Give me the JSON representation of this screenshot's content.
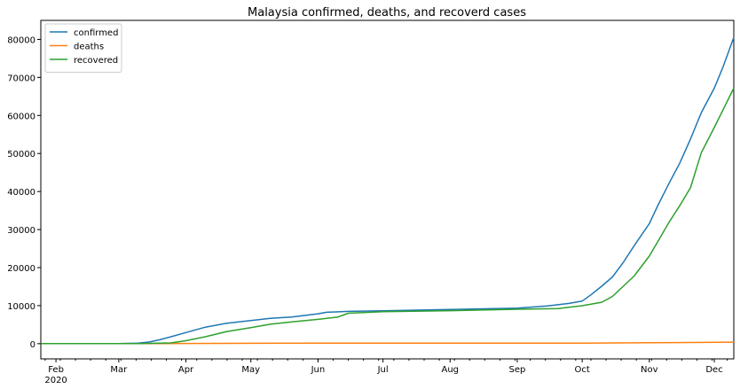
{
  "chart_data": {
    "type": "line",
    "title": "Malaysia confirmed, deaths, and recoverd cases",
    "xlabel": "",
    "ylabel": "",
    "x_start": "2020-01-25",
    "x_end": "2020-12-10",
    "ylim": [
      -4000,
      85000
    ],
    "yticks": [
      0,
      10000,
      20000,
      30000,
      40000,
      50000,
      60000,
      70000,
      80000
    ],
    "xticks": [
      {
        "date": "2020-02-01",
        "label": "Feb",
        "sublabel": "2020"
      },
      {
        "date": "2020-03-01",
        "label": "Mar",
        "sublabel": ""
      },
      {
        "date": "2020-04-01",
        "label": "Apr",
        "sublabel": ""
      },
      {
        "date": "2020-05-01",
        "label": "May",
        "sublabel": ""
      },
      {
        "date": "2020-06-01",
        "label": "Jun",
        "sublabel": ""
      },
      {
        "date": "2020-07-01",
        "label": "Jul",
        "sublabel": ""
      },
      {
        "date": "2020-08-01",
        "label": "Aug",
        "sublabel": ""
      },
      {
        "date": "2020-09-01",
        "label": "Sep",
        "sublabel": ""
      },
      {
        "date": "2020-10-01",
        "label": "Oct",
        "sublabel": ""
      },
      {
        "date": "2020-11-01",
        "label": "Nov",
        "sublabel": ""
      },
      {
        "date": "2020-12-01",
        "label": "Dec",
        "sublabel": ""
      }
    ],
    "grid": false,
    "legend": "top-left",
    "series": [
      {
        "name": "confirmed",
        "color": "#1f77b4",
        "points": [
          [
            "2020-01-25",
            3
          ],
          [
            "2020-02-15",
            22
          ],
          [
            "2020-03-01",
            29
          ],
          [
            "2020-03-10",
            129
          ],
          [
            "2020-03-15",
            428
          ],
          [
            "2020-03-20",
            1030
          ],
          [
            "2020-03-25",
            1796
          ],
          [
            "2020-04-01",
            2908
          ],
          [
            "2020-04-10",
            4346
          ],
          [
            "2020-04-20",
            5389
          ],
          [
            "2020-05-01",
            6071
          ],
          [
            "2020-05-10",
            6656
          ],
          [
            "2020-05-20",
            7009
          ],
          [
            "2020-06-01",
            7857
          ],
          [
            "2020-06-05",
            8247
          ],
          [
            "2020-06-15",
            8494
          ],
          [
            "2020-07-01",
            8640
          ],
          [
            "2020-08-01",
            8976
          ],
          [
            "2020-09-01",
            9354
          ],
          [
            "2020-09-15",
            9900
          ],
          [
            "2020-09-25",
            10576
          ],
          [
            "2020-10-01",
            11224
          ],
          [
            "2020-10-05",
            12813
          ],
          [
            "2020-10-10",
            15096
          ],
          [
            "2020-10-15",
            17540
          ],
          [
            "2020-10-20",
            21363
          ],
          [
            "2020-10-25",
            25742
          ],
          [
            "2020-11-01",
            31548
          ],
          [
            "2020-11-05",
            36434
          ],
          [
            "2020-11-10",
            42050
          ],
          [
            "2020-11-15",
            47417
          ],
          [
            "2020-11-20",
            53812
          ],
          [
            "2020-11-25",
            60752
          ],
          [
            "2020-12-01",
            67169
          ],
          [
            "2020-12-05",
            72694
          ],
          [
            "2020-12-10",
            80529
          ]
        ]
      },
      {
        "name": "deaths",
        "color": "#ff7f0e",
        "points": [
          [
            "2020-01-25",
            0
          ],
          [
            "2020-03-17",
            2
          ],
          [
            "2020-04-01",
            45
          ],
          [
            "2020-05-01",
            103
          ],
          [
            "2020-06-01",
            115
          ],
          [
            "2020-08-01",
            125
          ],
          [
            "2020-10-01",
            136
          ],
          [
            "2020-11-01",
            246
          ],
          [
            "2020-12-10",
            398
          ]
        ]
      },
      {
        "name": "recovered",
        "color": "#2ca02c",
        "points": [
          [
            "2020-01-25",
            0
          ],
          [
            "2020-03-10",
            24
          ],
          [
            "2020-03-20",
            114
          ],
          [
            "2020-03-25",
            183
          ],
          [
            "2020-04-01",
            767
          ],
          [
            "2020-04-10",
            1830
          ],
          [
            "2020-04-20",
            3197
          ],
          [
            "2020-05-01",
            4210
          ],
          [
            "2020-05-10",
            5113
          ],
          [
            "2020-05-20",
            5706
          ],
          [
            "2020-06-01",
            6383
          ],
          [
            "2020-06-10",
            6978
          ],
          [
            "2020-06-15",
            8004
          ],
          [
            "2020-07-01",
            8404
          ],
          [
            "2020-08-01",
            8666
          ],
          [
            "2020-09-01",
            9050
          ],
          [
            "2020-09-20",
            9234
          ],
          [
            "2020-10-01",
            9973
          ],
          [
            "2020-10-10",
            10879
          ],
          [
            "2020-10-15",
            12425
          ],
          [
            "2020-10-20",
            15103
          ],
          [
            "2020-10-25",
            17782
          ],
          [
            "2020-11-01",
            23031
          ],
          [
            "2020-11-05",
            26921
          ],
          [
            "2020-11-10",
            31832
          ],
          [
            "2020-11-15",
            36264
          ],
          [
            "2020-11-20",
            40983
          ],
          [
            "2020-11-25",
            50222
          ],
          [
            "2020-12-01",
            56832
          ],
          [
            "2020-12-05",
            61434
          ],
          [
            "2020-12-10",
            67172
          ]
        ]
      }
    ]
  }
}
